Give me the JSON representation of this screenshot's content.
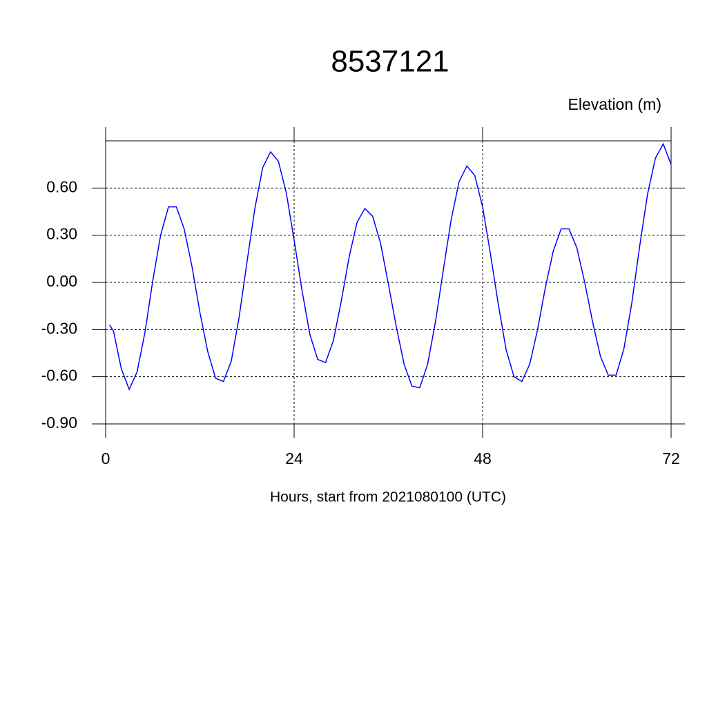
{
  "chart_data": {
    "type": "line",
    "title": "8537121",
    "ylabel": "Elevation (m)",
    "xlabel": "Hours, start from 2021080100 (UTC)",
    "xlim": [
      0,
      72
    ],
    "xticks": [
      0,
      24,
      48,
      72
    ],
    "ylim": [
      -0.9,
      0.9
    ],
    "yticks": [
      {
        "value": -0.9,
        "label": "-0.90"
      },
      {
        "value": -0.6,
        "label": "-0.60"
      },
      {
        "value": -0.3,
        "label": "-0.30"
      },
      {
        "value": 0,
        "label": "0.00"
      },
      {
        "value": 0.3,
        "label": "0.30"
      },
      {
        "value": 0.6,
        "label": "0.60"
      }
    ],
    "grid": true,
    "x": [
      0.5,
      1,
      2,
      3,
      4,
      5,
      6,
      7,
      8,
      9,
      10,
      11,
      12,
      13,
      14,
      15,
      16,
      17,
      18,
      19,
      20,
      21,
      22,
      23,
      24,
      25,
      26,
      27,
      28,
      29,
      30,
      31,
      32,
      33,
      34,
      35,
      36,
      37,
      38,
      39,
      40,
      41,
      42,
      43,
      44,
      45,
      46,
      47,
      48,
      49,
      50,
      51,
      52,
      53,
      54,
      55,
      56,
      57,
      58,
      59,
      60,
      61,
      62,
      63,
      64,
      65,
      66,
      67,
      68,
      69,
      70,
      71,
      72
    ],
    "series": [
      {
        "color": "#0000ff",
        "values": [
          -0.27,
          -0.31,
          -0.55,
          -0.68,
          -0.57,
          -0.32,
          0.01,
          0.3,
          0.48,
          0.48,
          0.34,
          0.1,
          -0.19,
          -0.44,
          -0.61,
          -0.63,
          -0.5,
          -0.22,
          0.13,
          0.47,
          0.73,
          0.83,
          0.77,
          0.57,
          0.27,
          -0.05,
          -0.33,
          -0.49,
          -0.51,
          -0.37,
          -0.12,
          0.16,
          0.38,
          0.47,
          0.42,
          0.25,
          -0.01,
          -0.28,
          -0.52,
          -0.66,
          -0.67,
          -0.52,
          -0.25,
          0.08,
          0.4,
          0.64,
          0.74,
          0.68,
          0.48,
          0.18,
          -0.14,
          -0.43,
          -0.6,
          -0.63,
          -0.52,
          -0.3,
          -0.03,
          0.2,
          0.34,
          0.34,
          0.22,
          0.0,
          -0.25,
          -0.47,
          -0.59,
          -0.59,
          -0.42,
          -0.13,
          0.23,
          0.56,
          0.79,
          0.88,
          0.75
        ]
      }
    ]
  }
}
